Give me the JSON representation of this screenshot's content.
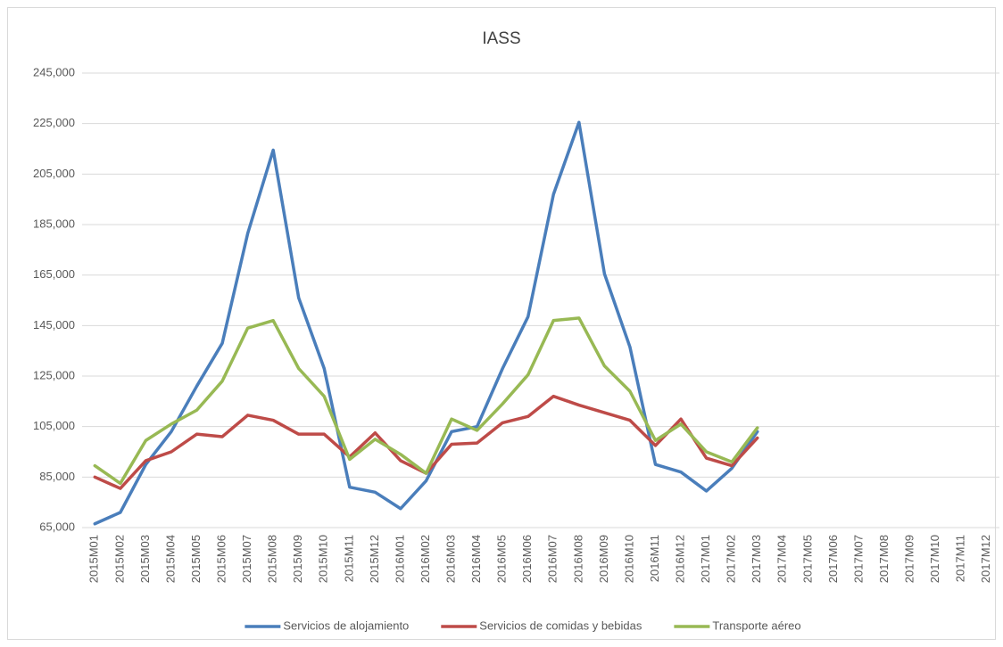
{
  "chart_data": {
    "type": "line",
    "title": "IASS",
    "categories": [
      "2015M01",
      "2015M02",
      "2015M03",
      "2015M04",
      "2015M05",
      "2015M06",
      "2015M07",
      "2015M08",
      "2015M09",
      "2015M10",
      "2015M11",
      "2015M12",
      "2016M01",
      "2016M02",
      "2016M03",
      "2016M04",
      "2016M05",
      "2016M06",
      "2016M07",
      "2016M08",
      "2016M09",
      "2016M10",
      "2016M11",
      "2016M12",
      "2017M01",
      "2017M02",
      "2017M03",
      "2017M04",
      "2017M05",
      "2017M06",
      "2017M07",
      "2017M08",
      "2017M09",
      "2017M10",
      "2017M11",
      "2017M12"
    ],
    "series": [
      {
        "name": "Servicios de alojamiento",
        "color": "#4a7ebb",
        "values": [
          66500,
          71000,
          90000,
          103000,
          121000,
          138000,
          181500,
          214500,
          156000,
          128000,
          81000,
          79000,
          72500,
          83500,
          103000,
          105000,
          128000,
          148500,
          197000,
          225500,
          165500,
          136500,
          90000,
          87000,
          79500,
          88500,
          103000,
          null,
          null,
          null,
          null,
          null,
          null,
          null,
          null,
          null
        ]
      },
      {
        "name": "Servicios de comidas y bebidas",
        "color": "#be4b48",
        "values": [
          85000,
          80500,
          91500,
          95000,
          102000,
          101000,
          109500,
          107500,
          102000,
          102000,
          93000,
          102500,
          91500,
          86500,
          98000,
          98500,
          106500,
          109000,
          117000,
          113500,
          110500,
          107500,
          97500,
          108000,
          92500,
          89500,
          100500,
          null,
          null,
          null,
          null,
          null,
          null,
          null,
          null,
          null
        ]
      },
      {
        "name": "Transporte aéreo",
        "color": "#98b954",
        "values": [
          89500,
          82500,
          99500,
          106000,
          111500,
          123000,
          144000,
          147000,
          128000,
          117000,
          92000,
          100000,
          94000,
          86500,
          108000,
          103500,
          114000,
          125500,
          147000,
          148000,
          129000,
          119000,
          99500,
          106000,
          95000,
          91000,
          104500,
          null,
          null,
          null,
          null,
          null,
          null,
          null,
          null,
          null
        ]
      }
    ],
    "ylim": [
      65000,
      245000
    ],
    "yticks": [
      {
        "value": 65000,
        "label": "65,000"
      },
      {
        "value": 85000,
        "label": "85,000"
      },
      {
        "value": 105000,
        "label": "105,000"
      },
      {
        "value": 125000,
        "label": "125,000"
      },
      {
        "value": 145000,
        "label": "145,000"
      },
      {
        "value": 165000,
        "label": "165,000"
      },
      {
        "value": 185000,
        "label": "185,000"
      },
      {
        "value": 205000,
        "label": "205,000"
      },
      {
        "value": 225000,
        "label": "225,000"
      },
      {
        "value": 245000,
        "label": "245,000"
      }
    ],
    "grid": true,
    "legend": "bottom"
  }
}
